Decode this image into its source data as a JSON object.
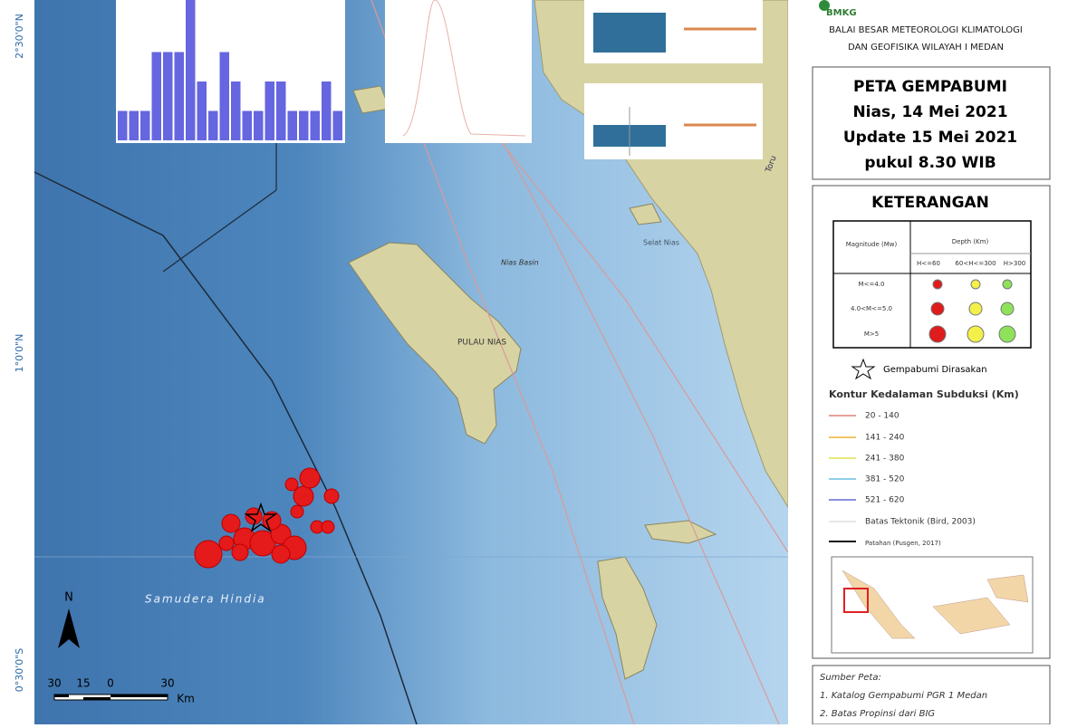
{
  "map": {
    "lat_labels": [
      "2°30'0\"N",
      "1°0'0\"N",
      "0°30'0\"S"
    ],
    "place_labels": {
      "island": "PULAU NIAS",
      "basin": "Nias Basin",
      "ocean": "Samudera Hindia",
      "river": "Toru",
      "strait": "Selat Nias"
    },
    "north": "N",
    "scale": {
      "ticks": [
        "30",
        "15",
        "0",
        "30"
      ],
      "unit": "Km"
    }
  },
  "inset_histogram": {
    "values": [
      1,
      1,
      1,
      3,
      3,
      3,
      5,
      2,
      1,
      3,
      2,
      1,
      1,
      2,
      2,
      1,
      1,
      1,
      2,
      1
    ]
  },
  "header": {
    "agency": "BMKG",
    "org_lines": [
      "BALAI BESAR METEOROLOGI KLIMATOLOGI",
      "DAN GEOFISIKA WILAYAH I MEDAN"
    ]
  },
  "title_lines": [
    "PETA GEMPABUMI",
    "Nias, 14 Mei 2021",
    "Update 15 Mei 2021",
    "pukul 8.30 WIB"
  ],
  "legend": {
    "title": "KETERANGAN",
    "table": {
      "magnitude_header": "Magnitude (Mw)",
      "depth_header": "Depth (Km)",
      "depth_classes": [
        "H<=60",
        "60<H<=300",
        "H>300"
      ],
      "magnitude_classes": [
        "M<=4.0",
        "4.0<M<=5.0",
        "M>5"
      ]
    },
    "felt": "Gempabumi Dirasakan",
    "contour_title": "Kontur Kedalaman Subduksi (Km)",
    "contours": [
      "20 - 140",
      "141 - 240",
      "241 - 380",
      "381 - 520",
      "521 - 620"
    ],
    "tectonic": "Batas Tektonik (Bird, 2003)",
    "fault": "Patahan (Pusgen, 2017)"
  },
  "sources": {
    "title": "Sumber Peta:",
    "items": [
      "1. Katalog Gempabumi PGR 1 Medan",
      "2. Batas Propinsi dari BIG"
    ]
  }
}
